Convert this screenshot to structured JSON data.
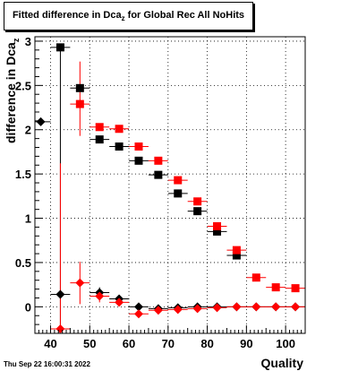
{
  "chart_data": {
    "type": "scatter",
    "title": "Fitted difference in Dca",
    "title_sub": "z",
    "title_rest": " for Global Rec All NoHits",
    "ylabel": "difference in Dca",
    "ylabel_sub": "z",
    "xlabel": "Quality",
    "xlim": [
      36,
      105
    ],
    "ylim": [
      -0.3,
      3.05
    ],
    "x_ticks": [
      40,
      50,
      60,
      70,
      80,
      90,
      100
    ],
    "y_ticks": [
      0,
      0.5,
      1,
      1.5,
      2,
      2.5,
      3
    ],
    "y_tick_labels": [
      "0",
      "0.5",
      "1",
      "1.5",
      "2",
      "2.5",
      "3"
    ],
    "grid": true,
    "series": [
      {
        "marker": "square",
        "color": "#000000",
        "points": [
          {
            "x": 42.5,
            "y": 2.93,
            "ylo": 2.93,
            "yhi": 2.93
          },
          {
            "x": 47.5,
            "y": 2.47,
            "ylo": 2.47,
            "yhi": 2.47
          },
          {
            "x": 52.5,
            "y": 1.89,
            "ylo": 1.89,
            "yhi": 1.89
          },
          {
            "x": 57.5,
            "y": 1.81,
            "ylo": 1.81,
            "yhi": 1.81
          },
          {
            "x": 62.5,
            "y": 1.65,
            "ylo": 1.65,
            "yhi": 1.65
          },
          {
            "x": 67.5,
            "y": 1.49,
            "ylo": 1.49,
            "yhi": 1.49
          },
          {
            "x": 72.5,
            "y": 1.28,
            "ylo": 1.28,
            "yhi": 1.28
          },
          {
            "x": 77.5,
            "y": 1.08,
            "ylo": 1.08,
            "yhi": 1.08
          },
          {
            "x": 82.5,
            "y": 0.85,
            "ylo": 0.85,
            "yhi": 0.85
          },
          {
            "x": 87.5,
            "y": 0.58,
            "ylo": 0.58,
            "yhi": 0.58
          }
        ]
      },
      {
        "marker": "square",
        "color": "#ff0000",
        "points": [
          {
            "x": 47.5,
            "y": 2.29,
            "ylo": 1.93,
            "yhi": 2.77
          },
          {
            "x": 52.5,
            "y": 2.03,
            "ylo": 2.03,
            "yhi": 2.03
          },
          {
            "x": 57.5,
            "y": 2.01,
            "ylo": 2.01,
            "yhi": 2.01
          },
          {
            "x": 62.5,
            "y": 1.81,
            "ylo": 1.81,
            "yhi": 1.81
          },
          {
            "x": 67.5,
            "y": 1.65,
            "ylo": 1.65,
            "yhi": 1.65
          },
          {
            "x": 72.5,
            "y": 1.43,
            "ylo": 1.43,
            "yhi": 1.43
          },
          {
            "x": 77.5,
            "y": 1.19,
            "ylo": 1.19,
            "yhi": 1.19
          },
          {
            "x": 82.5,
            "y": 0.91,
            "ylo": 0.91,
            "yhi": 0.91
          },
          {
            "x": 87.5,
            "y": 0.64,
            "ylo": 0.64,
            "yhi": 0.64
          },
          {
            "x": 92.5,
            "y": 0.33,
            "ylo": 0.33,
            "yhi": 0.33
          },
          {
            "x": 97.5,
            "y": 0.22,
            "ylo": 0.22,
            "yhi": 0.22
          },
          {
            "x": 102.5,
            "y": 0.21,
            "ylo": 0.21,
            "yhi": 0.21
          }
        ]
      },
      {
        "marker": "diamond",
        "color": "#000000",
        "points": [
          {
            "x": 37.5,
            "y": 2.09,
            "ylo": 2.09,
            "yhi": 2.09
          },
          {
            "x": 42.5,
            "y": 0.14,
            "ylo": -0.3,
            "yhi": 2.93
          },
          {
            "x": 52.5,
            "y": 0.16,
            "ylo": 0.1,
            "yhi": 0.22
          },
          {
            "x": 57.5,
            "y": 0.09,
            "ylo": 0.05,
            "yhi": 0.13
          },
          {
            "x": 62.5,
            "y": 0.0,
            "ylo": 0.0,
            "yhi": 0.0
          },
          {
            "x": 67.5,
            "y": -0.02,
            "ylo": -0.02,
            "yhi": -0.02
          },
          {
            "x": 72.5,
            "y": -0.01,
            "ylo": -0.01,
            "yhi": -0.01
          },
          {
            "x": 77.5,
            "y": 0.0,
            "ylo": 0.0,
            "yhi": 0.0
          },
          {
            "x": 82.5,
            "y": 0.0,
            "ylo": 0.0,
            "yhi": 0.0
          },
          {
            "x": 87.5,
            "y": 0.0,
            "ylo": 0.0,
            "yhi": 0.0
          },
          {
            "x": 92.5,
            "y": 0.0,
            "ylo": 0.0,
            "yhi": 0.0
          },
          {
            "x": 97.5,
            "y": 0.0,
            "ylo": 0.0,
            "yhi": 0.0
          },
          {
            "x": 102.5,
            "y": 0.0,
            "ylo": 0.0,
            "yhi": 0.0
          }
        ]
      },
      {
        "marker": "diamond",
        "color": "#ff0000",
        "points": [
          {
            "x": 42.5,
            "y": -0.25,
            "ylo": -0.3,
            "yhi": 1.62
          },
          {
            "x": 47.5,
            "y": 0.27,
            "ylo": 0.03,
            "yhi": 0.51
          },
          {
            "x": 52.5,
            "y": 0.12,
            "ylo": 0.05,
            "yhi": 0.19
          },
          {
            "x": 57.5,
            "y": 0.05,
            "ylo": 0.01,
            "yhi": 0.09
          },
          {
            "x": 62.5,
            "y": -0.08,
            "ylo": -0.08,
            "yhi": -0.08
          },
          {
            "x": 67.5,
            "y": -0.04,
            "ylo": -0.04,
            "yhi": -0.04
          },
          {
            "x": 72.5,
            "y": -0.03,
            "ylo": -0.03,
            "yhi": -0.03
          },
          {
            "x": 77.5,
            "y": -0.02,
            "ylo": -0.02,
            "yhi": -0.02
          },
          {
            "x": 82.5,
            "y": -0.01,
            "ylo": -0.01,
            "yhi": -0.01
          },
          {
            "x": 87.5,
            "y": 0.0,
            "ylo": 0.0,
            "yhi": 0.0
          },
          {
            "x": 92.5,
            "y": 0.0,
            "ylo": 0.0,
            "yhi": 0.0
          },
          {
            "x": 97.5,
            "y": 0.0,
            "ylo": 0.0,
            "yhi": 0.0
          },
          {
            "x": 102.5,
            "y": 0.0,
            "ylo": 0.0,
            "yhi": 0.0
          }
        ]
      }
    ]
  },
  "footer": {
    "datestamp": "Thu Sep 22 16:00:31 2022"
  }
}
